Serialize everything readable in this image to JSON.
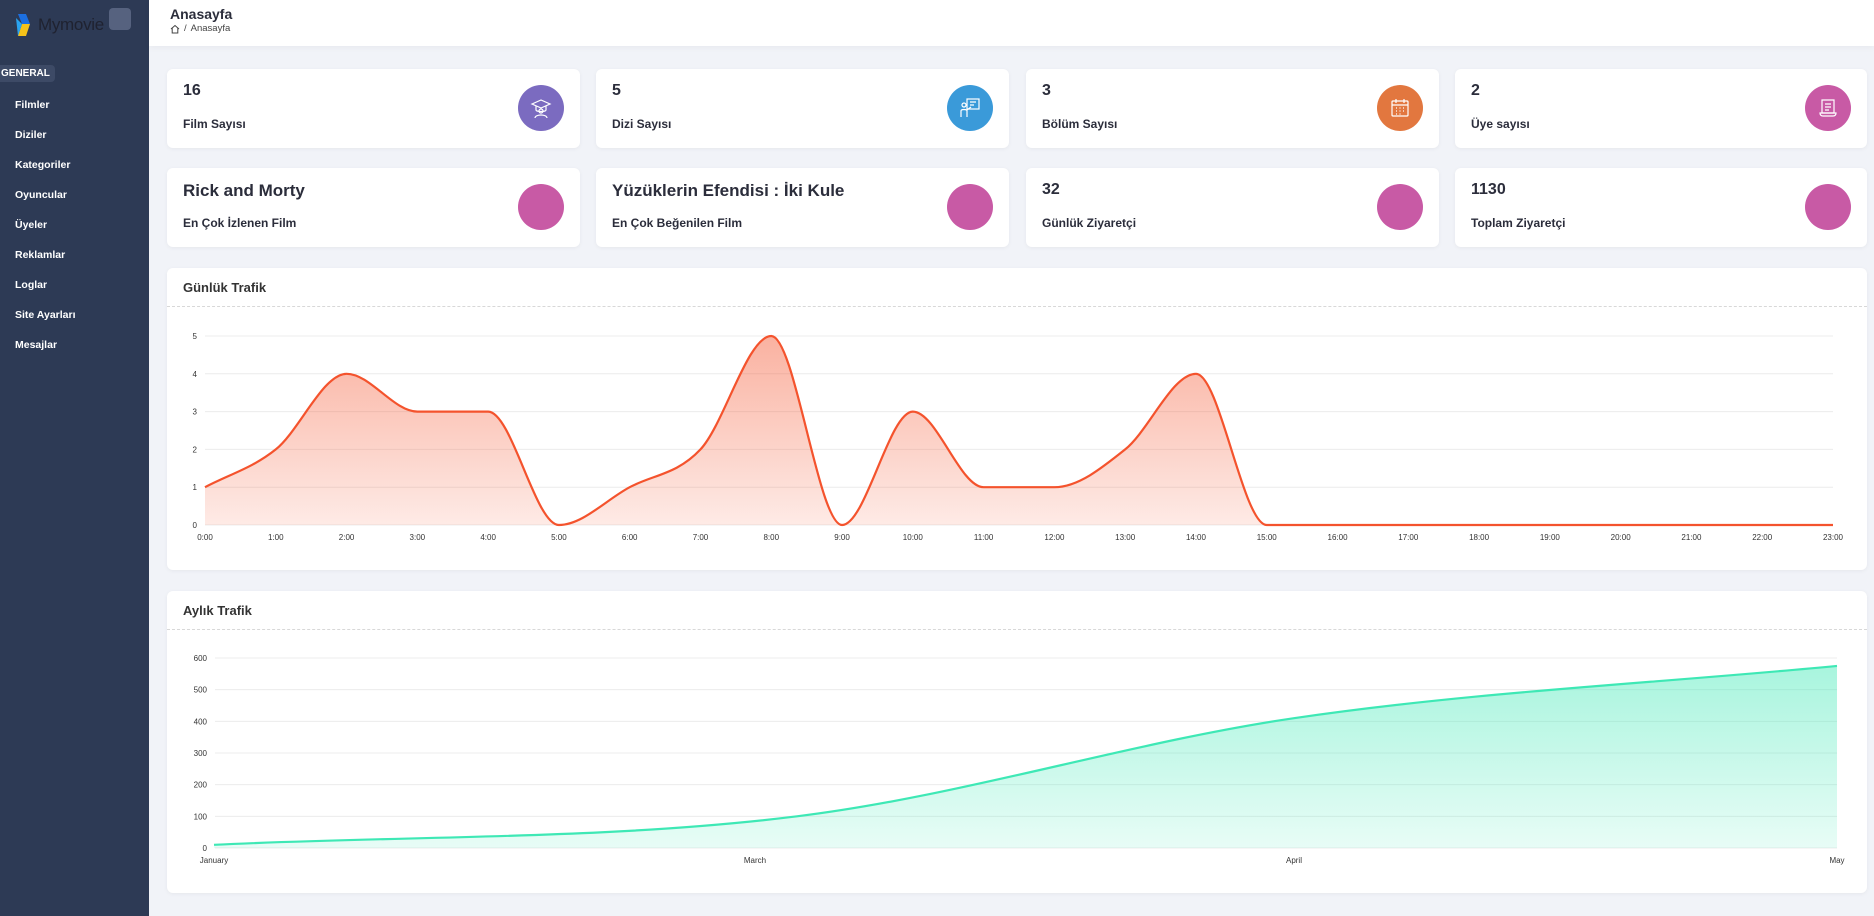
{
  "sidebar": {
    "logo_text": "Mymovie",
    "section": "GENERAL",
    "items": [
      "Filmler",
      "Diziler",
      "Kategoriler",
      "Oyuncular",
      "Üyeler",
      "Reklamlar",
      "Loglar",
      "Site Ayarları",
      "Mesajlar"
    ]
  },
  "header": {
    "title": "Anasayfa",
    "breadcrumb_sep": "/",
    "breadcrumb_current": "Anasayfa"
  },
  "stats": [
    {
      "value": "16",
      "label": "Film Sayısı",
      "color": "#7b6bc0",
      "icon": "student-icon"
    },
    {
      "value": "5",
      "label": "Dizi Sayısı",
      "color": "#3a9ad9",
      "icon": "presentation-icon"
    },
    {
      "value": "3",
      "label": "Bölüm Sayısı",
      "color": "#e2773f",
      "icon": "calendar-icon"
    },
    {
      "value": "2",
      "label": "Üye sayısı",
      "color": "#c85aa5",
      "icon": "receipt-icon"
    },
    {
      "value": "Rick and Morty",
      "label": "En Çok İzlenen Film",
      "color": "#c85aa5"
    },
    {
      "value": "Yüzüklerin Efendisi : İki Kule",
      "label": "En Çok Beğenilen Film",
      "color": "#c85aa5"
    },
    {
      "value": "32",
      "label": "Günlük Ziyaretçi",
      "color": "#c85aa5"
    },
    {
      "value": "1130",
      "label": "Toplam Ziyaretçi",
      "color": "#c85aa5"
    }
  ],
  "chart_data": [
    {
      "type": "area",
      "title": "Günlük Trafik",
      "categories": [
        "0:00",
        "1:00",
        "2:00",
        "3:00",
        "4:00",
        "5:00",
        "6:00",
        "7:00",
        "8:00",
        "9:00",
        "10:00",
        "11:00",
        "12:00",
        "13:00",
        "14:00",
        "15:00",
        "16:00",
        "17:00",
        "18:00",
        "19:00",
        "20:00",
        "21:00",
        "22:00",
        "23:00"
      ],
      "values": [
        1,
        2,
        4,
        3,
        3,
        0,
        1,
        2,
        5,
        0,
        3,
        1,
        1,
        2,
        4,
        0,
        0,
        0,
        0,
        0,
        0,
        0,
        0,
        0
      ],
      "yticks": [
        0,
        1,
        2,
        3,
        4,
        5
      ],
      "ylim": [
        0,
        5
      ],
      "color": "#f4532d",
      "grid": true
    },
    {
      "type": "area",
      "title": "Aylık Trafik",
      "categories": [
        "January",
        "March",
        "April",
        "May"
      ],
      "values": [
        10,
        100,
        410,
        575
      ],
      "yticks": [
        0,
        100,
        200,
        300,
        400,
        500,
        600
      ],
      "ylim": [
        0,
        600
      ],
      "color": "#3ee8b5",
      "grid": true
    }
  ]
}
